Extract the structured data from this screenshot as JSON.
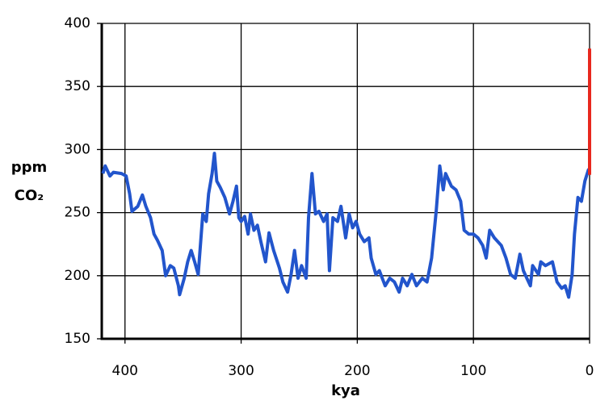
{
  "chart_data": {
    "type": "line",
    "xlabel": "kya",
    "ylabel": [
      "ppm",
      "CO₂"
    ],
    "xlim": [
      420,
      0
    ],
    "xticks": [
      400,
      300,
      200,
      100,
      0
    ],
    "ylim": [
      150,
      400
    ],
    "yticks": [
      150,
      200,
      250,
      300,
      350,
      400
    ],
    "grid": true,
    "series": [
      {
        "color": "#2255cc",
        "x": [
          419,
          417,
          413,
          410,
          403,
          399,
          396,
          394,
          389,
          385,
          382,
          378,
          375,
          372,
          368,
          365,
          361,
          358,
          354,
          353,
          349,
          346,
          343,
          340,
          337,
          333,
          330,
          328,
          325,
          323,
          321,
          318,
          314,
          310,
          307,
          304,
          302,
          300,
          297,
          294,
          292,
          289,
          286,
          283,
          279,
          276,
          272,
          267,
          264,
          260,
          257,
          254,
          251,
          248,
          244,
          242,
          239,
          236,
          233,
          229,
          226,
          224,
          221,
          217,
          214,
          210,
          207,
          204,
          201,
          198,
          194,
          190,
          188,
          184,
          181,
          176,
          172,
          168,
          164,
          161,
          157,
          153,
          149,
          144,
          140,
          136,
          132,
          129,
          126,
          124,
          119,
          115,
          111,
          108,
          104,
          100,
          96,
          92,
          89,
          86,
          82,
          76,
          72,
          68,
          64,
          60,
          57,
          54,
          51,
          49,
          44,
          42,
          38,
          32,
          28,
          24,
          21,
          18,
          15,
          13,
          10,
          7,
          4,
          1,
          0
        ],
        "values": [
          281,
          287,
          279,
          282,
          281,
          279,
          265,
          251,
          255,
          264,
          255,
          246,
          233,
          228,
          220,
          200,
          208,
          206,
          192,
          185,
          198,
          211,
          220,
          211,
          201,
          249,
          243,
          265,
          281,
          297,
          275,
          270,
          262,
          249,
          259,
          271,
          246,
          243,
          247,
          233,
          249,
          236,
          240,
          227,
          211,
          234,
          220,
          206,
          195,
          187,
          201,
          220,
          198,
          208,
          198,
          246,
          281,
          249,
          251,
          243,
          249,
          204,
          246,
          243,
          255,
          230,
          249,
          238,
          243,
          233,
          227,
          230,
          214,
          201,
          204,
          192,
          198,
          195,
          187,
          198,
          192,
          201,
          192,
          198,
          195,
          214,
          252,
          287,
          268,
          281,
          271,
          268,
          259,
          236,
          233,
          233,
          230,
          224,
          214,
          236,
          230,
          224,
          214,
          201,
          198,
          217,
          204,
          198,
          192,
          208,
          201,
          211,
          208,
          211,
          195,
          190,
          192,
          183,
          201,
          233,
          262,
          259,
          275,
          284,
          281
        ]
      },
      {
        "color": "#e8281e",
        "x": [
          0,
          0
        ],
        "values": [
          280,
          380
        ]
      }
    ]
  }
}
